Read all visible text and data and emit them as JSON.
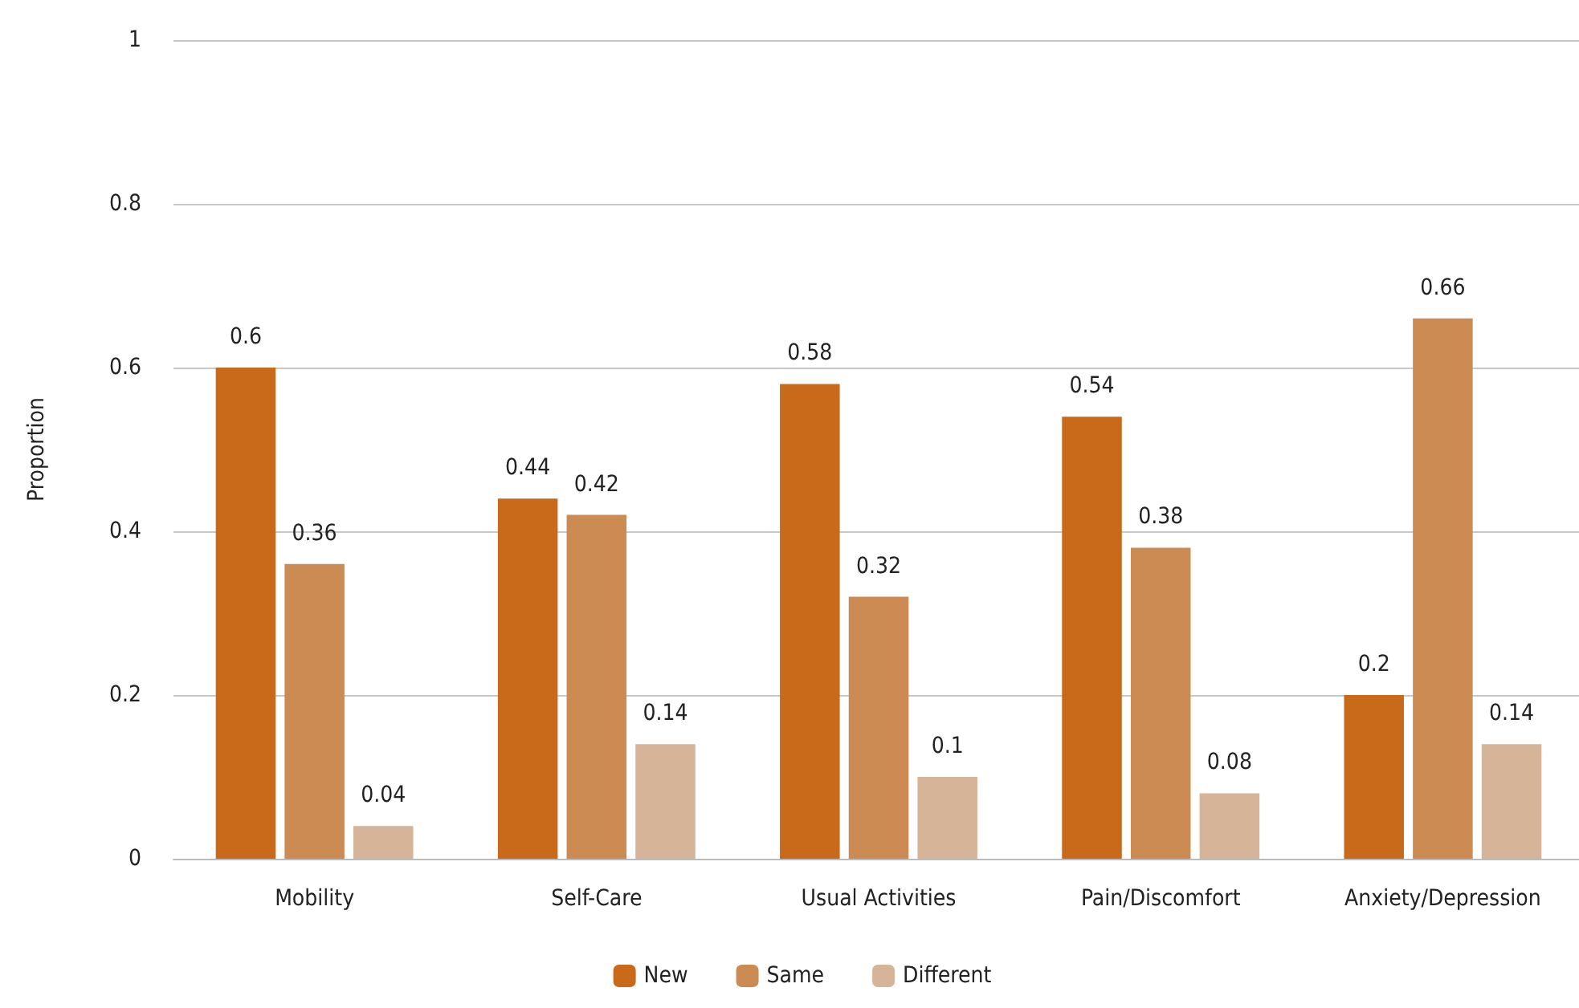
{
  "chart_data": {
    "type": "bar",
    "ylabel": "Proportion",
    "categories": [
      "Mobility",
      "Self-Care",
      "Usual Activities",
      "Pain/Discomfort",
      "Anxiety/Depression"
    ],
    "series": [
      {
        "name": "New",
        "color": "#c96a1b",
        "values": [
          0.6,
          0.44,
          0.58,
          0.54,
          0.2
        ]
      },
      {
        "name": "Same",
        "color": "#cd8b54",
        "values": [
          0.36,
          0.42,
          0.32,
          0.38,
          0.66
        ]
      },
      {
        "name": "Different",
        "color": "#d5b497",
        "values": [
          0.04,
          0.14,
          0.1,
          0.08,
          0.14
        ]
      }
    ],
    "ylim": [
      0,
      1
    ],
    "yticks": [
      0,
      0.2,
      0.4,
      0.6,
      0.8,
      1
    ],
    "grid": "y",
    "legend": "bottom",
    "data_labels": true
  }
}
